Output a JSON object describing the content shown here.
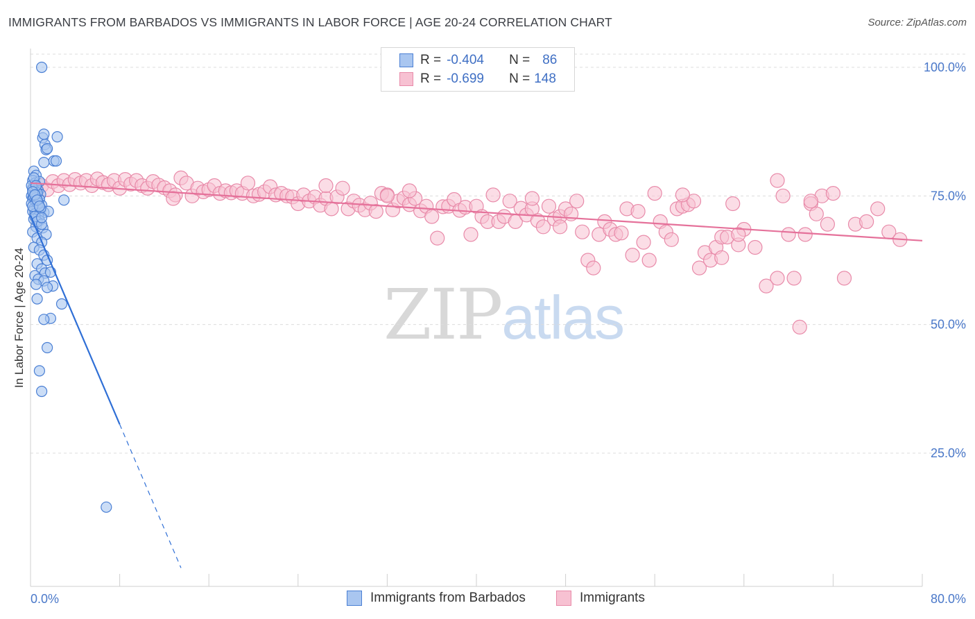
{
  "header": {
    "title": "IMMIGRANTS FROM BARBADOS VS IMMIGRANTS IN LABOR FORCE | AGE 20-24 CORRELATION CHART",
    "source": "Source: ZipAtlas.com"
  },
  "watermark": {
    "zip": "ZIP",
    "atlas": "atlas"
  },
  "legend_top": [
    {
      "r_label": "R =",
      "r_value": "-0.404",
      "n_label": "N =",
      "n_value": "86"
    },
    {
      "r_label": "R =",
      "r_value": "-0.699",
      "n_label": "N =",
      "n_value": "148"
    }
  ],
  "legend_bottom": [
    {
      "label": "Immigrants from Barbados"
    },
    {
      "label": "Immigrants"
    }
  ],
  "colors": {
    "blue_fill": "#a9c6f0",
    "blue_stroke": "#4a7fd4",
    "blue_line": "#2f6fd6",
    "pink_fill": "#f7c1d2",
    "pink_stroke": "#e88aa9",
    "pink_line": "#e5719a",
    "grid": "#dcdcdc",
    "tick_text": "#4a78c9"
  },
  "chart_data": {
    "type": "scatter",
    "title": "IMMIGRANTS FROM BARBADOS VS IMMIGRANTS IN LABOR FORCE | AGE 20-24 CORRELATION CHART",
    "xlabel": "",
    "ylabel": "In Labor Force | Age 20-24",
    "xlim": [
      0,
      80
    ],
    "ylim": [
      0,
      101
    ],
    "x_tick_labels": [
      "0.0%",
      "80.0%"
    ],
    "y_ticks": [
      25,
      50,
      75,
      100
    ],
    "y_tick_labels": [
      "25.0%",
      "50.0%",
      "75.0%",
      "100.0%"
    ],
    "grid": true,
    "legend_position": "top-center",
    "series": [
      {
        "name": "Immigrants from Barbados",
        "r": -0.404,
        "n": 86,
        "trend": {
          "x0": 0,
          "y0": 71.2,
          "x1": 8.0,
          "y1": 30.6,
          "dash_to_x": 13.5
        },
        "points": [
          [
            1.0,
            100
          ],
          [
            1.1,
            86.3
          ],
          [
            1.2,
            87.0
          ],
          [
            2.4,
            86.5
          ],
          [
            1.3,
            85.0
          ],
          [
            1.4,
            84.0
          ],
          [
            1.5,
            84.2
          ],
          [
            2.1,
            81.8
          ],
          [
            2.3,
            81.8
          ],
          [
            1.2,
            81.5
          ],
          [
            0.3,
            79.8
          ],
          [
            0.5,
            79.0
          ],
          [
            0.2,
            78.0
          ],
          [
            0.4,
            77.5
          ],
          [
            0.8,
            77.8
          ],
          [
            0.2,
            76.5
          ],
          [
            0.5,
            76.8
          ],
          [
            0.7,
            76.0
          ],
          [
            0.3,
            75.5
          ],
          [
            0.1,
            75.0
          ],
          [
            0.6,
            75.2
          ],
          [
            0.9,
            75.3
          ],
          [
            0.2,
            74.5
          ],
          [
            0.4,
            74.0
          ],
          [
            0.8,
            74.3
          ],
          [
            0.1,
            73.5
          ],
          [
            0.5,
            73.8
          ],
          [
            1.0,
            73.2
          ],
          [
            0.3,
            72.5
          ],
          [
            0.6,
            72.8
          ],
          [
            0.2,
            72.0
          ],
          [
            0.9,
            72.2
          ],
          [
            1.2,
            71.8
          ],
          [
            0.4,
            71.5
          ],
          [
            0.7,
            71.0
          ],
          [
            1.6,
            72.0
          ],
          [
            0.3,
            70.5
          ],
          [
            0.8,
            70.2
          ],
          [
            0.5,
            69.0
          ],
          [
            1.1,
            68.8
          ],
          [
            0.2,
            68.0
          ],
          [
            1.4,
            67.5
          ],
          [
            0.6,
            66.8
          ],
          [
            1.0,
            66.0
          ],
          [
            0.3,
            65.0
          ],
          [
            0.8,
            64.5
          ],
          [
            1.2,
            63.5
          ],
          [
            1.5,
            62.5
          ],
          [
            0.6,
            61.8
          ],
          [
            1.0,
            60.8
          ],
          [
            1.3,
            60.0
          ],
          [
            0.4,
            59.5
          ],
          [
            1.8,
            60.2
          ],
          [
            0.7,
            58.8
          ],
          [
            1.2,
            58.5
          ],
          [
            0.5,
            57.8
          ],
          [
            2.0,
            57.5
          ],
          [
            1.5,
            57.2
          ],
          [
            3.0,
            74.2
          ],
          [
            2.8,
            54.0
          ],
          [
            0.6,
            55.0
          ],
          [
            1.8,
            51.2
          ],
          [
            1.2,
            51.0
          ],
          [
            1.5,
            45.5
          ],
          [
            0.8,
            41.0
          ],
          [
            1.0,
            37.0
          ],
          [
            6.8,
            14.5
          ],
          [
            0.2,
            76.2
          ],
          [
            0.4,
            76.0
          ],
          [
            0.6,
            75.6
          ],
          [
            0.3,
            74.8
          ],
          [
            0.5,
            74.6
          ],
          [
            0.7,
            73.6
          ],
          [
            0.9,
            72.6
          ],
          [
            0.2,
            73.0
          ],
          [
            0.4,
            71.0
          ],
          [
            0.6,
            70.0
          ],
          [
            1.0,
            69.5
          ],
          [
            0.1,
            77.0
          ],
          [
            0.3,
            78.5
          ],
          [
            0.5,
            77.0
          ],
          [
            0.2,
            75.8
          ],
          [
            0.4,
            75.2
          ],
          [
            0.6,
            74.2
          ],
          [
            0.8,
            73.0
          ],
          [
            1.0,
            70.8
          ]
        ]
      },
      {
        "name": "Immigrants",
        "r": -0.699,
        "n": 148,
        "trend": {
          "x0": 0,
          "y0": 77.5,
          "x1": 80,
          "y1": 66.3
        },
        "points": [
          [
            0.5,
            76.5
          ],
          [
            1.0,
            77.0
          ],
          [
            1.5,
            76.2
          ],
          [
            2.0,
            77.8
          ],
          [
            2.5,
            77.0
          ],
          [
            3.0,
            78.0
          ],
          [
            3.5,
            77.2
          ],
          [
            4.0,
            78.2
          ],
          [
            4.5,
            77.5
          ],
          [
            5.0,
            78.0
          ],
          [
            5.5,
            77.0
          ],
          [
            6.0,
            78.3
          ],
          [
            6.5,
            77.6
          ],
          [
            7.0,
            77.2
          ],
          [
            7.5,
            78.0
          ],
          [
            8.0,
            76.5
          ],
          [
            8.5,
            78.2
          ],
          [
            9.0,
            77.3
          ],
          [
            9.5,
            78.0
          ],
          [
            10.0,
            77.0
          ],
          [
            10.5,
            76.5
          ],
          [
            11.0,
            77.8
          ],
          [
            11.5,
            77.1
          ],
          [
            12.0,
            76.6
          ],
          [
            12.5,
            76.0
          ],
          [
            13.0,
            75.2
          ],
          [
            13.5,
            78.5
          ],
          [
            14.0,
            77.5
          ],
          [
            14.5,
            75.0
          ],
          [
            15.0,
            76.5
          ],
          [
            15.5,
            75.8
          ],
          [
            16.0,
            76.2
          ],
          [
            16.5,
            77.0
          ],
          [
            17.0,
            75.5
          ],
          [
            17.5,
            76.0
          ],
          [
            18.0,
            75.6
          ],
          [
            18.5,
            76.0
          ],
          [
            19.0,
            75.5
          ],
          [
            19.5,
            77.5
          ],
          [
            20.0,
            75.0
          ],
          [
            20.5,
            75.3
          ],
          [
            21.0,
            75.8
          ],
          [
            21.5,
            76.8
          ],
          [
            22.0,
            75.2
          ],
          [
            22.5,
            75.5
          ],
          [
            23.0,
            75.0
          ],
          [
            23.5,
            74.8
          ],
          [
            24.0,
            73.5
          ],
          [
            24.5,
            75.2
          ],
          [
            25.0,
            74.0
          ],
          [
            25.5,
            74.8
          ],
          [
            26.0,
            73.2
          ],
          [
            26.5,
            74.5
          ],
          [
            27.0,
            72.5
          ],
          [
            27.5,
            74.8
          ],
          [
            28.0,
            76.5
          ],
          [
            28.5,
            72.5
          ],
          [
            29.0,
            74.0
          ],
          [
            29.5,
            73.2
          ],
          [
            30.0,
            72.3
          ],
          [
            30.5,
            73.6
          ],
          [
            31.0,
            72.0
          ],
          [
            31.5,
            75.5
          ],
          [
            32.0,
            75.2
          ],
          [
            32.5,
            72.3
          ],
          [
            33.0,
            74.0
          ],
          [
            33.5,
            74.6
          ],
          [
            34.0,
            73.3
          ],
          [
            34.5,
            74.5
          ],
          [
            35.0,
            72.1
          ],
          [
            35.5,
            73.0
          ],
          [
            36.0,
            71.0
          ],
          [
            36.5,
            66.8
          ],
          [
            37.0,
            72.9
          ],
          [
            37.5,
            73.0
          ],
          [
            38.0,
            74.3
          ],
          [
            38.5,
            72.2
          ],
          [
            39.0,
            72.8
          ],
          [
            39.5,
            67.5
          ],
          [
            40.0,
            73.0
          ],
          [
            40.5,
            71.0
          ],
          [
            41.0,
            70.0
          ],
          [
            41.5,
            75.2
          ],
          [
            42.0,
            70.0
          ],
          [
            42.5,
            71.0
          ],
          [
            43.0,
            74.0
          ],
          [
            43.5,
            70.0
          ],
          [
            44.0,
            72.6
          ],
          [
            44.5,
            71.3
          ],
          [
            45.0,
            72.5
          ],
          [
            45.5,
            70.2
          ],
          [
            46.0,
            69.0
          ],
          [
            46.5,
            73.0
          ],
          [
            47.0,
            70.5
          ],
          [
            47.5,
            71.0
          ],
          [
            48.0,
            72.5
          ],
          [
            48.5,
            71.5
          ],
          [
            49.0,
            74.0
          ],
          [
            49.5,
            68.0
          ],
          [
            50.0,
            62.5
          ],
          [
            50.5,
            61.0
          ],
          [
            51.0,
            67.5
          ],
          [
            51.5,
            70.0
          ],
          [
            52.0,
            68.5
          ],
          [
            52.5,
            67.5
          ],
          [
            53.0,
            67.8
          ],
          [
            53.5,
            72.5
          ],
          [
            54.0,
            63.5
          ],
          [
            54.5,
            72.0
          ],
          [
            55.0,
            66.0
          ],
          [
            55.5,
            62.5
          ],
          [
            56.0,
            75.5
          ],
          [
            56.5,
            70.0
          ],
          [
            57.0,
            68.0
          ],
          [
            57.5,
            66.5
          ],
          [
            58.0,
            72.5
          ],
          [
            58.5,
            73.0
          ],
          [
            59.0,
            73.3
          ],
          [
            59.5,
            74.0
          ],
          [
            60.0,
            61.0
          ],
          [
            60.5,
            64.0
          ],
          [
            61.0,
            62.5
          ],
          [
            61.5,
            65.0
          ],
          [
            62.0,
            67.0
          ],
          [
            62.5,
            67.0
          ],
          [
            63.0,
            73.5
          ],
          [
            63.5,
            65.5
          ],
          [
            64.0,
            68.5
          ],
          [
            65.0,
            65.0
          ],
          [
            66.0,
            57.5
          ],
          [
            67.0,
            59.0
          ],
          [
            67.5,
            75.0
          ],
          [
            68.0,
            67.5
          ],
          [
            68.5,
            59.0
          ],
          [
            69.0,
            49.5
          ],
          [
            70.0,
            73.5
          ],
          [
            70.5,
            71.5
          ],
          [
            71.0,
            75.0
          ],
          [
            72.0,
            75.5
          ],
          [
            73.0,
            59.0
          ],
          [
            74.0,
            69.5
          ],
          [
            75.0,
            70.0
          ],
          [
            76.0,
            72.5
          ],
          [
            77.0,
            68.0
          ],
          [
            78.0,
            66.5
          ],
          [
            69.5,
            67.5
          ],
          [
            71.5,
            69.5
          ],
          [
            34.0,
            76.0
          ],
          [
            63.5,
            67.5
          ],
          [
            58.5,
            75.2
          ],
          [
            67.0,
            78.0
          ],
          [
            47.5,
            69.0
          ],
          [
            26.5,
            77.0
          ],
          [
            12.8,
            74.5
          ],
          [
            32.0,
            75.0
          ],
          [
            45.0,
            74.5
          ],
          [
            62.0,
            63.0
          ],
          [
            70.0,
            74.0
          ]
        ]
      }
    ]
  }
}
